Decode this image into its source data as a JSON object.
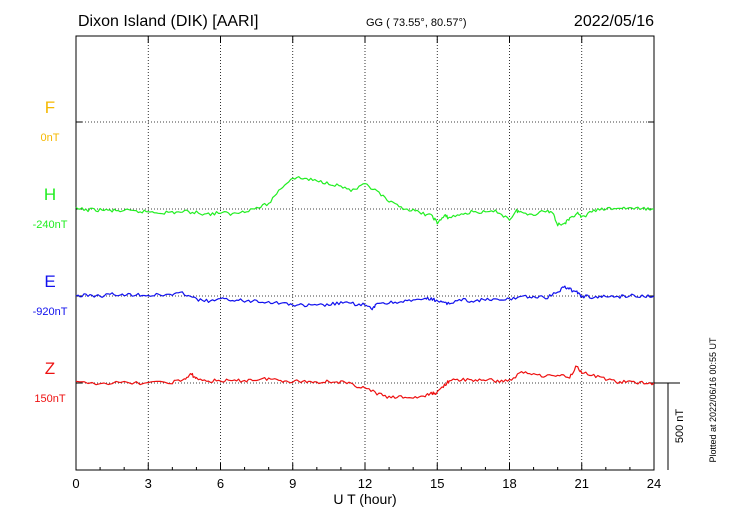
{
  "header": {
    "title": "Dixon Island (DIK)  [AARI]",
    "coords": "GG ( 73.55°,  80.57°)",
    "date": "2022/05/16"
  },
  "side_note": "Plotted at 2022/06/16 00:55 UT",
  "scale_label": "500 nT",
  "chart_data": {
    "type": "line",
    "title": "Dixon Island (DIK)  [AARI]",
    "xlabel": "U T (hour)",
    "ylabel": "",
    "xlim": [
      0,
      24
    ],
    "xticks": [
      0,
      3,
      6,
      9,
      12,
      15,
      18,
      21,
      24
    ],
    "xtick_labels": [
      "0",
      "3",
      "6",
      "9",
      "12",
      "15",
      "18",
      "21",
      "24"
    ],
    "scale_bar_nT": 500,
    "grid": "dotted",
    "series": [
      {
        "name": "F",
        "baseline_label": "0nT",
        "color": "#f5b800",
        "x": [],
        "values": []
      },
      {
        "name": "H",
        "baseline_label": "-240nT",
        "color": "#22ee22",
        "x": [
          0,
          0.5,
          1,
          1.5,
          2,
          2.5,
          3,
          3.5,
          4,
          4.5,
          5,
          5.5,
          6,
          6.5,
          7,
          7.5,
          8,
          8.5,
          9,
          9.5,
          10,
          10.5,
          11,
          11.5,
          12,
          12.5,
          13,
          13.5,
          14,
          14.5,
          14.8,
          15,
          15.3,
          15.5,
          16,
          16.5,
          17,
          17.5,
          18,
          18.3,
          18.5,
          19,
          19.5,
          19.8,
          20,
          20.3,
          20.5,
          20.8,
          21,
          21.5,
          22,
          22.5,
          23,
          23.5,
          24
        ],
        "values": [
          0,
          -5,
          -5,
          -10,
          -10,
          -15,
          -15,
          -20,
          -20,
          -15,
          -20,
          -30,
          -20,
          -30,
          -10,
          5,
          30,
          120,
          180,
          175,
          160,
          150,
          130,
          105,
          140,
          100,
          40,
          10,
          -10,
          -30,
          -40,
          -80,
          -40,
          -50,
          -30,
          -15,
          -20,
          -15,
          -60,
          -10,
          -20,
          -30,
          -10,
          -20,
          -90,
          -80,
          -60,
          -20,
          -50,
          -10,
          0,
          5,
          5,
          0,
          0
        ]
      },
      {
        "name": "E",
        "baseline_label": "-920nT",
        "color": "#1111ee",
        "x": [
          0,
          0.5,
          1,
          1.5,
          2,
          2.5,
          3,
          3.5,
          4,
          4.5,
          5,
          5.5,
          6,
          6.5,
          7,
          7.5,
          8,
          8.5,
          9,
          9.5,
          10,
          10.5,
          11,
          11.5,
          12,
          12.3,
          12.5,
          13,
          13.5,
          14,
          14.5,
          14.8,
          15,
          15.3,
          15.5,
          16,
          16.5,
          17,
          17.5,
          18,
          18.5,
          19,
          19.5,
          20,
          20.3,
          20.5,
          20.8,
          21,
          21.5,
          22,
          22.5,
          23,
          23.5,
          24
        ],
        "values": [
          0,
          5,
          0,
          10,
          5,
          10,
          5,
          5,
          10,
          15,
          -20,
          -30,
          -20,
          -20,
          -30,
          -25,
          -35,
          -40,
          -50,
          -55,
          -55,
          -50,
          -40,
          -45,
          -50,
          -80,
          -40,
          -40,
          -30,
          -30,
          -15,
          -20,
          -25,
          -45,
          -40,
          -20,
          -30,
          -20,
          -25,
          -20,
          0,
          -5,
          -10,
          20,
          55,
          40,
          20,
          0,
          -10,
          0,
          -5,
          5,
          0,
          0
        ]
      },
      {
        "name": "Z",
        "baseline_label": "150nT",
        "color": "#ee1111",
        "x": [
          0,
          1,
          2,
          3,
          4,
          4.5,
          4.8,
          5,
          5.5,
          6,
          6.5,
          7,
          7.5,
          8,
          8.5,
          9,
          9.5,
          10,
          10.5,
          11,
          11.5,
          12,
          12.5,
          13,
          13.5,
          14,
          14.5,
          14.8,
          15,
          15.3,
          15.5,
          16,
          16.5,
          17,
          17.5,
          18,
          18.5,
          19,
          19.5,
          20,
          20.5,
          20.8,
          21,
          21.5,
          22,
          22.5,
          23,
          23.5,
          24
        ],
        "values": [
          0,
          0,
          0,
          0,
          5,
          20,
          50,
          25,
          10,
          15,
          10,
          15,
          20,
          25,
          15,
          10,
          10,
          5,
          10,
          5,
          -10,
          -30,
          -60,
          -85,
          -80,
          -85,
          -75,
          -60,
          -55,
          -10,
          10,
          20,
          15,
          20,
          10,
          15,
          60,
          55,
          40,
          45,
          35,
          100,
          60,
          40,
          25,
          5,
          5,
          0,
          0
        ]
      }
    ]
  }
}
